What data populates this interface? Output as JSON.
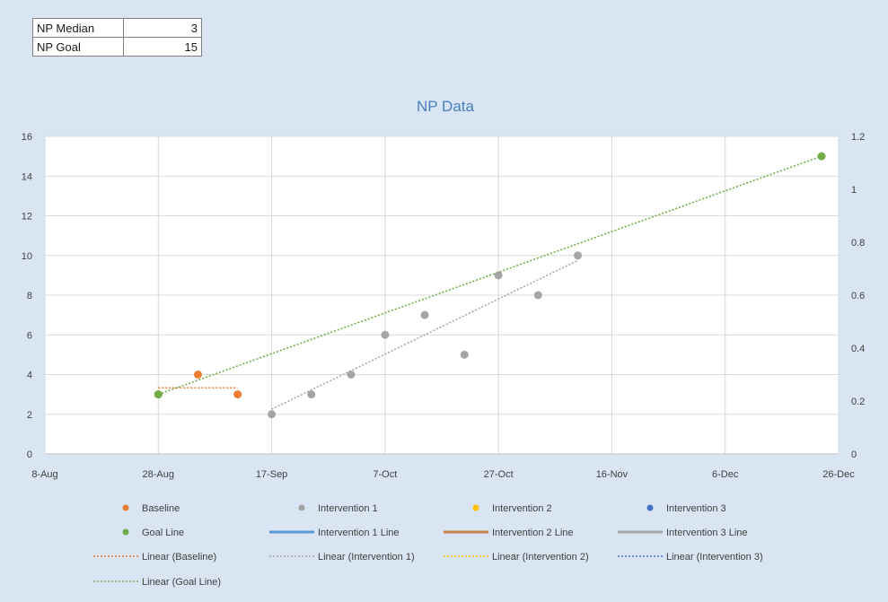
{
  "summary": {
    "rows": [
      {
        "label": "NP Median",
        "value": "3"
      },
      {
        "label": "NP Goal",
        "value": "15"
      }
    ]
  },
  "colors": {
    "baseline": "#ed7d31",
    "intervention1": "#a5a5a5",
    "intervention2": "#ffc000",
    "intervention3": "#4472c4",
    "goal": "#70ad47",
    "intervention1_line": "#5b9bd5",
    "intervention2_line": "#c9824a",
    "intervention3_line": "#a5a5a5",
    "grid": "#d9d9d9",
    "title": "#4a7fc0"
  },
  "chart_data": {
    "type": "scatter",
    "title": "NP Data",
    "xlabel": "",
    "ylabel": "",
    "x_axis_type": "date",
    "xlim": [
      "2015-08-08",
      "2015-12-26"
    ],
    "x_ticks": [
      {
        "date": "2015-08-08",
        "label": "8-Aug"
      },
      {
        "date": "2015-08-28",
        "label": "28-Aug"
      },
      {
        "date": "2015-09-17",
        "label": "17-Sep"
      },
      {
        "date": "2015-10-07",
        "label": "7-Oct"
      },
      {
        "date": "2015-10-27",
        "label": "27-Oct"
      },
      {
        "date": "2015-11-16",
        "label": "16-Nov"
      },
      {
        "date": "2015-12-06",
        "label": "6-Dec"
      },
      {
        "date": "2015-12-26",
        "label": "26-Dec"
      }
    ],
    "ylim": [
      0,
      16
    ],
    "y_ticks": [
      "0",
      "2",
      "4",
      "6",
      "8",
      "10",
      "12",
      "14",
      "16"
    ],
    "y2lim": [
      0,
      1.2
    ],
    "y2_ticks": [
      "0",
      "0.2",
      "0.4",
      "0.6",
      "0.8",
      "1",
      "1.2"
    ],
    "grid": true,
    "legend_position": "bottom",
    "series": [
      {
        "name": "Baseline",
        "kind": "scatter",
        "color_key": "baseline",
        "points": [
          [
            "2015-08-28",
            3
          ],
          [
            "2015-09-04",
            4
          ],
          [
            "2015-09-11",
            3
          ]
        ]
      },
      {
        "name": "Intervention 1",
        "kind": "scatter",
        "color_key": "intervention1",
        "points": [
          [
            "2015-09-17",
            2
          ],
          [
            "2015-09-24",
            3
          ],
          [
            "2015-10-01",
            4
          ],
          [
            "2015-10-07",
            6
          ],
          [
            "2015-10-14",
            7
          ],
          [
            "2015-10-21",
            5
          ],
          [
            "2015-10-27",
            9
          ],
          [
            "2015-11-03",
            8
          ],
          [
            "2015-11-10",
            10
          ]
        ]
      },
      {
        "name": "Intervention 2",
        "kind": "scatter",
        "color_key": "intervention2",
        "points": []
      },
      {
        "name": "Intervention 3",
        "kind": "scatter",
        "color_key": "intervention3",
        "points": []
      },
      {
        "name": "Goal Line",
        "kind": "scatter",
        "color_key": "goal",
        "points": [
          [
            "2015-08-28",
            3
          ],
          [
            "2015-12-23",
            15
          ]
        ]
      },
      {
        "name": "Intervention 1 Line",
        "kind": "line",
        "color_key": "intervention1_line",
        "points": []
      },
      {
        "name": "Intervention 2 Line",
        "kind": "line",
        "color_key": "intervention2_line",
        "points": []
      },
      {
        "name": "Intervention 3 Line",
        "kind": "line",
        "color_key": "intervention3_line",
        "points": []
      },
      {
        "name": "Linear (Baseline)",
        "kind": "trend",
        "color_key": "baseline",
        "trend_of": "Baseline"
      },
      {
        "name": "Linear (Intervention 1)",
        "kind": "trend",
        "color_key": "intervention1",
        "trend_of": "Intervention 1"
      },
      {
        "name": "Linear (Intervention 2)",
        "kind": "trend",
        "color_key": "intervention2",
        "trend_of": "Intervention 2"
      },
      {
        "name": "Linear (Intervention 3)",
        "kind": "trend",
        "color_key": "intervention3",
        "trend_of": "Intervention 3"
      },
      {
        "name": "Linear (Goal Line)",
        "kind": "trend",
        "color_key": "goal",
        "trend_of": "Goal Line"
      }
    ]
  }
}
